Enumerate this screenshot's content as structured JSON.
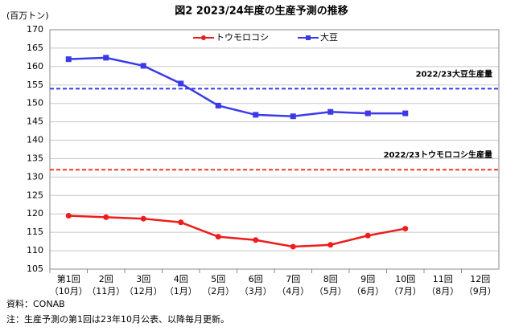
{
  "chart_data": {
    "type": "line",
    "title": "図2 2023/24年度の生産予測の推移",
    "y_label": "(百万トン)",
    "categories": [
      "第1回",
      "2回",
      "3回",
      "4回",
      "5回",
      "6回",
      "7回",
      "8回",
      "9回",
      "10回",
      "11回",
      "12回"
    ],
    "category_months": [
      "（10月）",
      "（11月）",
      "（12月）",
      "（1月）",
      "（2月）",
      "（3月）",
      "（4月）",
      "（5月）",
      "（6月）",
      "（7月）",
      "（8月）",
      "（9月）"
    ],
    "series": [
      {
        "name": "トウモロコシ",
        "color": "#ee1c1c",
        "marker": "circle",
        "values": [
          119.5,
          119.1,
          118.7,
          117.7,
          113.8,
          112.9,
          111.1,
          111.6,
          114.1,
          116.0,
          null,
          null
        ]
      },
      {
        "name": "大豆",
        "color": "#3a3ae8",
        "marker": "square",
        "values": [
          162.0,
          162.4,
          160.2,
          155.4,
          149.4,
          146.9,
          146.5,
          147.7,
          147.3,
          147.3,
          null,
          null
        ]
      }
    ],
    "reference_lines": [
      {
        "label": "2022/23大豆生産量",
        "value": 154,
        "color": "#3a3ae8"
      },
      {
        "label": "2022/23トウモロコシ生産量",
        "value": 132,
        "color": "#ee3a1c"
      }
    ],
    "ylim": [
      105,
      170
    ],
    "yticks": [
      105,
      110,
      115,
      120,
      125,
      130,
      135,
      140,
      145,
      150,
      155,
      160,
      165,
      170
    ],
    "grid": true,
    "notes": [
      "資料：CONAB",
      "注：生産予測の第1回は23年10月公表、以降毎月更新。"
    ]
  }
}
